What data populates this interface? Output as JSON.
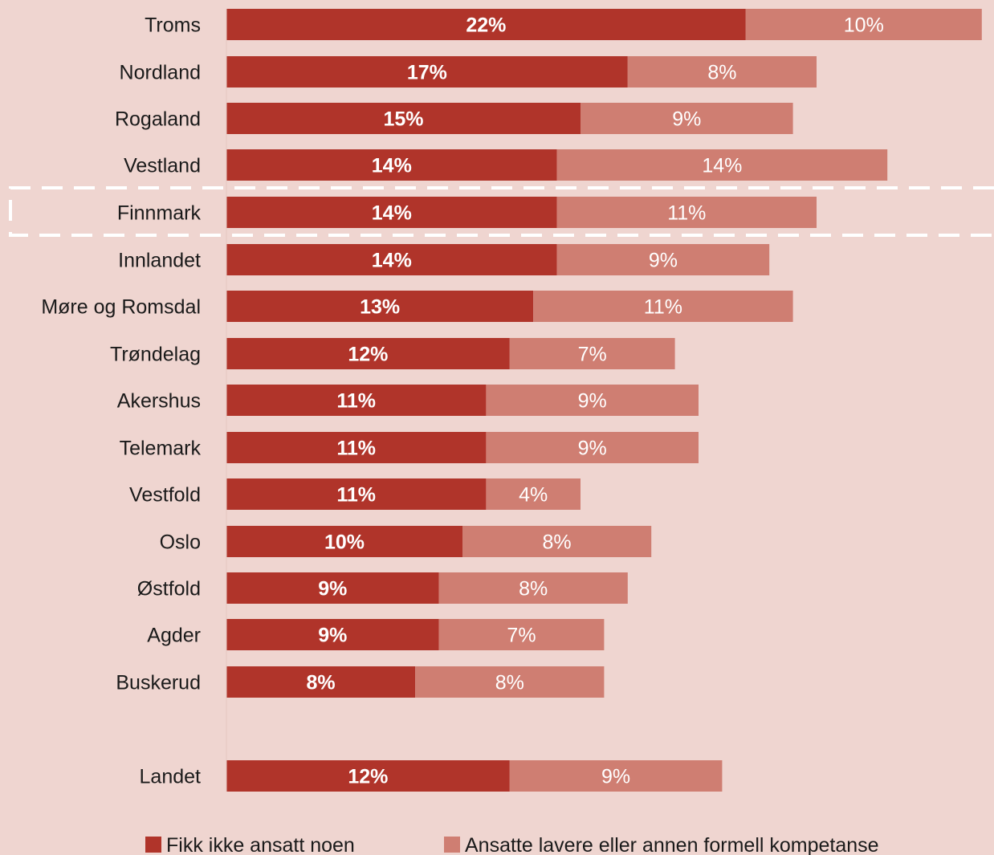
{
  "chart_data": {
    "type": "bar",
    "orientation": "horizontal",
    "stacked": true,
    "categories": [
      "Troms",
      "Nordland",
      "Rogaland",
      "Vestland",
      "Finnmark",
      "Innlandet",
      "Møre og Romsdal",
      "Trøndelag",
      "Akershus",
      "Telemark",
      "Vestfold",
      "Oslo",
      "Østfold",
      "Agder",
      "Buskerud",
      "Landet"
    ],
    "series": [
      {
        "name": "Fikk ikke ansatt noen",
        "color": "#b0342a",
        "values": [
          22,
          17,
          15,
          14,
          14,
          14,
          13,
          12,
          11,
          11,
          11,
          10,
          9,
          9,
          8,
          12
        ],
        "labels": [
          "22%",
          "17%",
          "15%",
          "14%",
          "14%",
          "14%",
          "13%",
          "12%",
          "11%",
          "11%",
          "11%",
          "10%",
          "9%",
          "9%",
          "8%",
          "12%"
        ]
      },
      {
        "name": "Ansatte lavere eller annen formell kompetanse",
        "color": "#cf7e72",
        "values": [
          10,
          8,
          9,
          14,
          11,
          9,
          11,
          7,
          9,
          9,
          4,
          8,
          8,
          7,
          8,
          9
        ],
        "labels": [
          "10%",
          "8%",
          "9%",
          "14%",
          "11%",
          "9%",
          "11%",
          "7%",
          "9%",
          "9%",
          "4%",
          "8%",
          "8%",
          "7%",
          "8%",
          "9%"
        ]
      }
    ],
    "highlight": "Finnmark",
    "axis_visible": false,
    "grid": false,
    "legend_position": "bottom"
  }
}
